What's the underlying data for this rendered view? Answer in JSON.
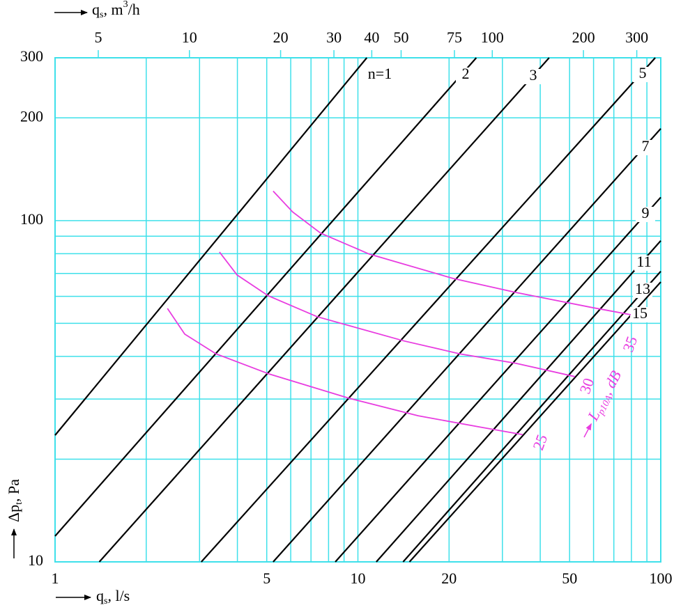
{
  "chart_data": {
    "type": "line",
    "x_scale": "log",
    "y_scale": "log",
    "xlim": [
      1,
      100
    ],
    "ylim": [
      10,
      300
    ],
    "xticks": [
      1,
      5,
      10,
      20,
      50,
      100
    ],
    "xgrid": [
      2,
      3,
      4,
      6,
      7,
      8,
      9,
      30,
      40,
      60,
      70,
      80,
      90
    ],
    "yticks": [
      10,
      100,
      200,
      300
    ],
    "ygrid": [
      20,
      30,
      40,
      50,
      60,
      70,
      80,
      90
    ],
    "x2lim": [
      3.6,
      360
    ],
    "x2ticks": [
      5,
      10,
      20,
      30,
      40,
      50,
      75,
      100,
      200,
      300
    ],
    "grid_color": "#3ee0ea",
    "x_label": {
      "text": "q",
      "sub": "s",
      "rest": ", l/s"
    },
    "x2_label": {
      "text": "q",
      "sub": "s",
      "rest": ", m",
      "sup": "3",
      "end": "/h"
    },
    "y_label": {
      "text": "Δp",
      "sub": "t",
      "rest": ", Pa"
    },
    "curve_label": {
      "text": "L",
      "sub": "p10A",
      "rest": ", dB"
    },
    "series": [
      {
        "name": "n=1",
        "color": "#000000",
        "x": [
          1,
          10.7
        ],
        "values": [
          23.5,
          300
        ]
      },
      {
        "name": "2",
        "color": "#000000",
        "x": [
          1,
          24.6
        ],
        "values": [
          11.9,
          300
        ]
      },
      {
        "name": "3",
        "color": "#000000",
        "x": [
          1.4,
          42.8
        ],
        "values": [
          10,
          300
        ]
      },
      {
        "name": "5",
        "color": "#000000",
        "x": [
          3.04,
          95.9
        ],
        "values": [
          10,
          300
        ]
      },
      {
        "name": "7",
        "color": "#000000",
        "x": [
          5.25,
          100
        ],
        "values": [
          10,
          186
        ]
      },
      {
        "name": "9",
        "color": "#000000",
        "x": [
          8.42,
          100
        ],
        "values": [
          10,
          117
        ]
      },
      {
        "name": "11",
        "color": "#000000",
        "x": [
          11.5,
          100
        ],
        "values": [
          10,
          87.3
        ]
      },
      {
        "name": "13",
        "color": "#000000",
        "x": [
          14.1,
          100
        ],
        "values": [
          10,
          71
        ]
      },
      {
        "name": "15",
        "color": "#000000",
        "x": [
          14.8,
          100
        ],
        "values": [
          10,
          66.1
        ]
      }
    ],
    "curves": [
      {
        "name": "25",
        "color": "#e83ce0",
        "x": [
          2.35,
          2.68,
          3.4,
          5.06,
          9.31,
          15.8,
          25.5,
          35.0
        ],
        "values": [
          55.3,
          46.5,
          40.7,
          35.6,
          30.2,
          26.8,
          24.8,
          23.6
        ]
      },
      {
        "name": "30",
        "color": "#e83ce0",
        "x": [
          3.49,
          3.99,
          5.06,
          7.33,
          14.2,
          21.7,
          33.2,
          52.1
        ],
        "values": [
          80.9,
          69.3,
          60.2,
          52.3,
          44.4,
          40.7,
          38.2,
          34.9
        ]
      },
      {
        "name": "35",
        "color": "#e83ce0",
        "x": [
          5.25,
          6.09,
          7.53,
          10.9,
          20.6,
          33.2,
          59.5,
          79.6
        ],
        "values": [
          122,
          106,
          91.9,
          79.8,
          67.7,
          61.6,
          55.6,
          53.0
        ]
      }
    ]
  }
}
